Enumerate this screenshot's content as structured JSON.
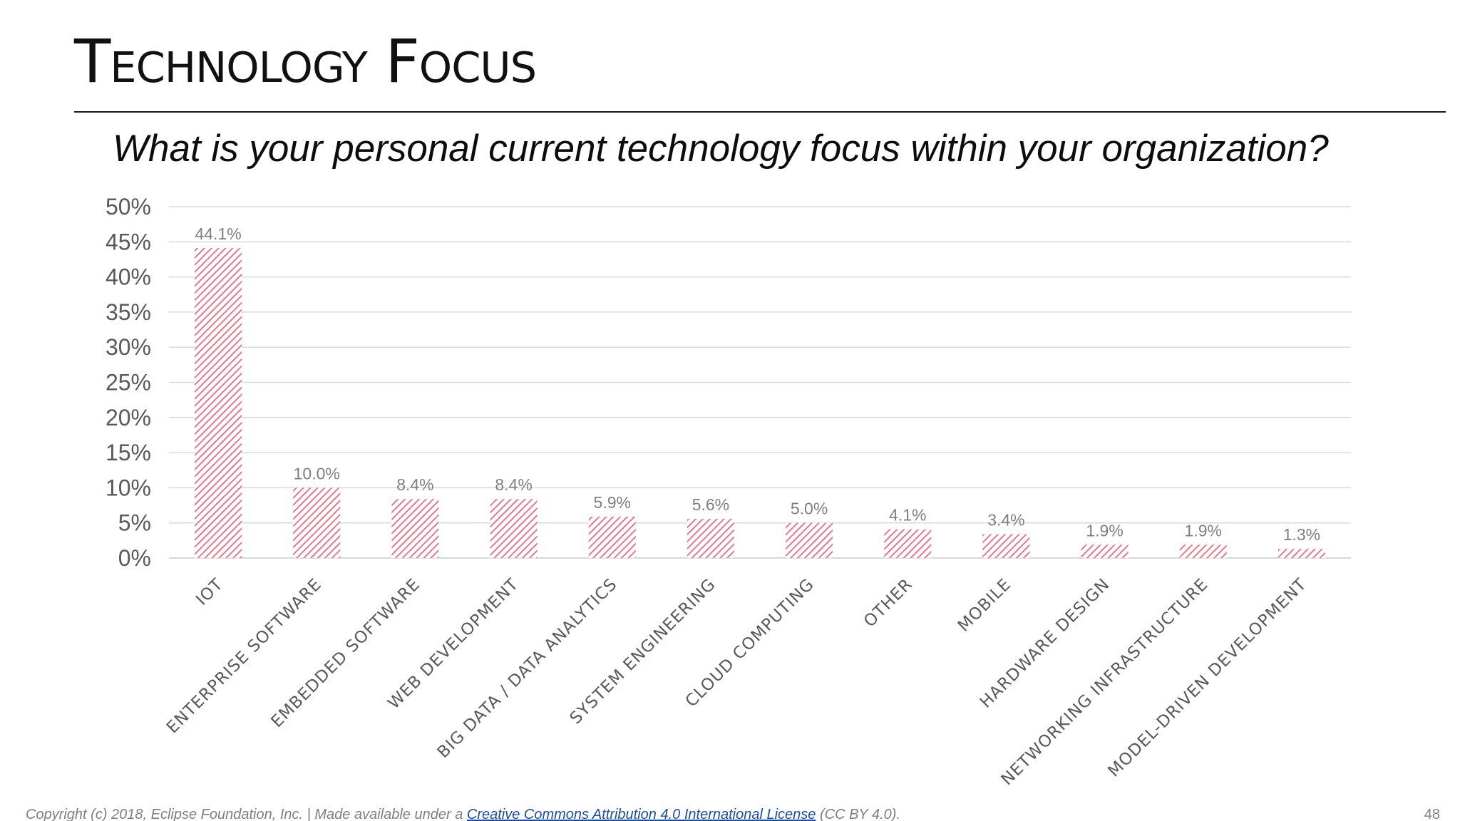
{
  "slide": {
    "title": "Technology Focus",
    "page_number": "48"
  },
  "footer": {
    "prefix": "Copyright (c) 2018, Eclipse Foundation, Inc. | Made available under a ",
    "link_text": "Creative Commons Attribution 4.0 International License",
    "suffix": " (CC BY 4.0)."
  },
  "colors": {
    "bar_hatch": "#e07a8e",
    "axis": "#d9d9d9",
    "tick_label": "#595959",
    "data_label": "#7f7f7f"
  },
  "chart_data": {
    "type": "bar",
    "title": "What is your personal current technology focus within your organization?",
    "categories": [
      "IOT",
      "ENTERPRISE SOFTWARE",
      "EMBEDDED SOFTWARE",
      "WEB DEVELOPMENT",
      "BIG DATA / DATA ANALYTICS",
      "SYSTEM ENGINEERING",
      "CLOUD COMPUTING",
      "OTHER",
      "MOBILE",
      "HARDWARE DESIGN",
      "NETWORKING INFRASTRUCTURE",
      "MODEL-DRIVEN DEVELOPMENT"
    ],
    "values": [
      44.1,
      10.0,
      8.4,
      8.4,
      5.9,
      5.6,
      5.0,
      4.1,
      3.4,
      1.9,
      1.9,
      1.3
    ],
    "data_labels": [
      "44.1%",
      "10.0%",
      "8.4%",
      "8.4%",
      "5.9%",
      "5.6%",
      "5.0%",
      "4.1%",
      "3.4%",
      "1.9%",
      "1.9%",
      "1.3%"
    ],
    "y_ticks": [
      "0%",
      "5%",
      "10%",
      "15%",
      "20%",
      "25%",
      "30%",
      "35%",
      "40%",
      "45%",
      "50%"
    ],
    "ylim": [
      0,
      50
    ],
    "grid": true,
    "legend": "none",
    "bar_style": "hatched"
  }
}
